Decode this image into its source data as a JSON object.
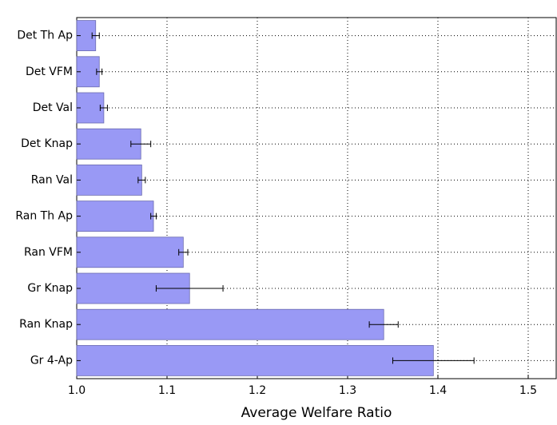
{
  "chart_data": {
    "type": "barh",
    "xlabel": "Average Welfare Ratio",
    "categories": [
      "Det Th Ap",
      "Det VFM",
      "Det Val",
      "Det Knap",
      "Ran Val",
      "Ran Th Ap",
      "Ran VFM",
      "Gr Knap",
      "Ran Knap",
      "Gr 4-Ap"
    ],
    "values": [
      1.021,
      1.025,
      1.03,
      1.071,
      1.072,
      1.085,
      1.118,
      1.125,
      1.34,
      1.395
    ],
    "errors": [
      0.004,
      0.003,
      0.004,
      0.011,
      0.004,
      0.003,
      0.005,
      0.037,
      0.016,
      0.045
    ],
    "color": "#9999f5",
    "xlim": [
      1.0,
      1.531
    ],
    "xticks": [
      {
        "value": 1.0,
        "label": "1.0"
      },
      1.1,
      1.2,
      1.3,
      1.4,
      1.5
    ],
    "grid": true
  }
}
